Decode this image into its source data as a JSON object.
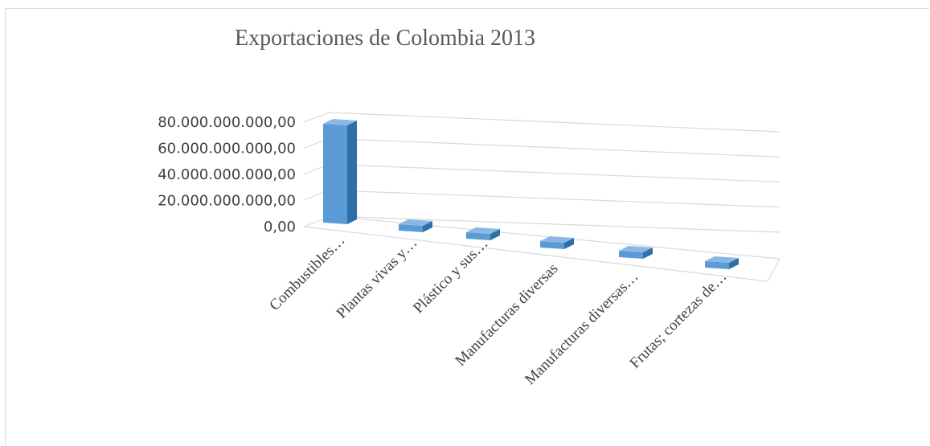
{
  "chart_data": {
    "type": "bar",
    "title": "Exportaciones de Colombia 2013",
    "categories": [
      "Combustibles…",
      "Plantas vivas y…",
      "Plástico y sus…",
      "Manufacturas diversas",
      "Manufacturas diversas…",
      "Frutas; cortezas de…"
    ],
    "values": [
      77500000000,
      700000000,
      650000000,
      600000000,
      550000000,
      500000000
    ],
    "ytick_labels": [
      "80.000.000.000,00",
      "60.000.000.000,00",
      "40.000.000.000,00",
      "20.000.000.000,00",
      "0,00"
    ],
    "ylim": [
      0,
      80000000000
    ],
    "grid": true,
    "legend": "none",
    "colors": {
      "bar_front": "#5b9bd5",
      "bar_side": "#2e6fa8",
      "bar_top": "#8ab8e4",
      "grid": "#d9d9d9"
    }
  }
}
